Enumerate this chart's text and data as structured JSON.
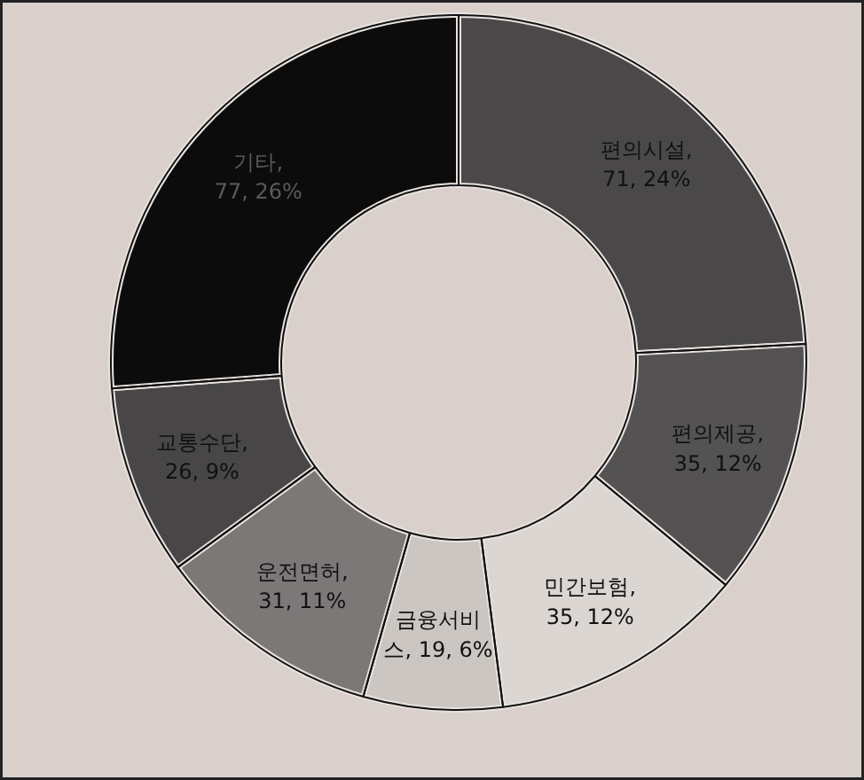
{
  "chart_data": {
    "type": "donut",
    "categories": [
      "편의시설",
      "편의제공",
      "민간보험",
      "금융서비스",
      "운전면허",
      "교통수단",
      "기타"
    ],
    "values": [
      71,
      35,
      35,
      19,
      31,
      26,
      77
    ],
    "value_labels": [
      ", 71, 24%",
      ", 35, 12%",
      ", 35, 12%",
      ", 19, 6%",
      ", 31, 11%",
      ", 26, 9%",
      ", 77, 26%"
    ],
    "colors": [
      "#4a4848",
      "#545252",
      "#dcd6d2",
      "#ccc6c2",
      "#7c7878",
      "#484646",
      "#0c0c0c"
    ]
  }
}
